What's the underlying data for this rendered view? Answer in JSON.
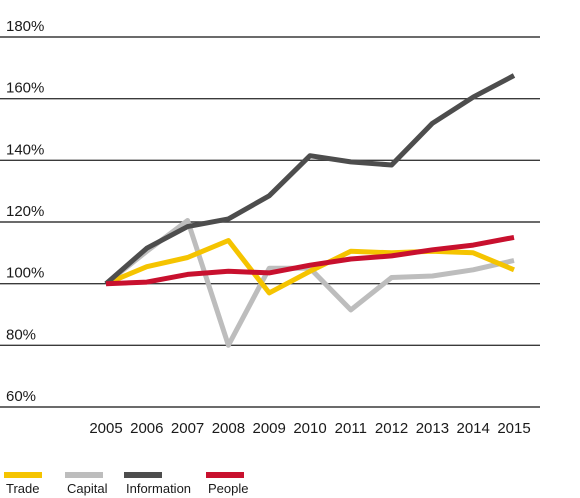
{
  "chart_data": {
    "type": "line",
    "title": "",
    "xlabel": "",
    "ylabel": "",
    "x": [
      "2005",
      "2006",
      "2007",
      "2008",
      "2009",
      "2010",
      "2011",
      "2012",
      "2013",
      "2014",
      "2015"
    ],
    "y_ticks": [
      "180%",
      "160%",
      "140%",
      "120%",
      "100%",
      "80%",
      "60%"
    ],
    "ylim": [
      60,
      180
    ],
    "grid": true,
    "legend_position": "bottom",
    "series": [
      {
        "name": "Trade",
        "color": "#f5c400",
        "values": [
          100,
          105.5,
          108.5,
          114,
          97,
          104,
          110.5,
          110,
          110.5,
          110,
          104.5
        ]
      },
      {
        "name": "Capital",
        "color": "#bdbdbd",
        "values": [
          100,
          110.5,
          120.5,
          80,
          105,
          105,
          91.5,
          102,
          102.5,
          104.5,
          107.5
        ]
      },
      {
        "name": "Information",
        "color": "#4d4d4d",
        "values": [
          100,
          111.5,
          118.5,
          121,
          128.5,
          141.5,
          139.5,
          138.5,
          152,
          160.5,
          167.5
        ]
      },
      {
        "name": "People",
        "color": "#c8102e",
        "values": [
          100,
          100.5,
          103,
          104,
          103.5,
          106,
          108,
          109,
          111,
          112.5,
          115
        ]
      }
    ]
  }
}
